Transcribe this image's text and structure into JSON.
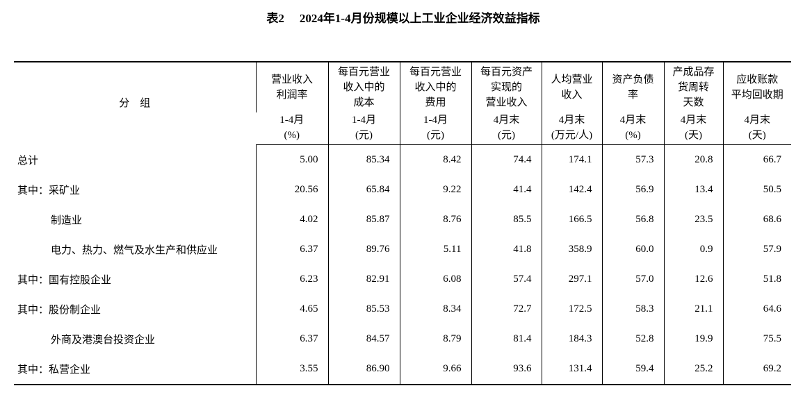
{
  "header": {
    "label": "表2",
    "title": "2024年1-4月份规模以上工业企业经济效益指标"
  },
  "table": {
    "group_header": "分　组",
    "columns": [
      {
        "name": [
          "营业收入",
          "利润率"
        ],
        "unit": [
          "1-4月",
          "(%)"
        ]
      },
      {
        "name": [
          "每百元营业",
          "收入中的",
          "成本"
        ],
        "unit": [
          "1-4月",
          "(元)"
        ]
      },
      {
        "name": [
          "每百元营业",
          "收入中的",
          "费用"
        ],
        "unit": [
          "1-4月",
          "(元)"
        ]
      },
      {
        "name": [
          "每百元资产",
          "实现的",
          "营业收入"
        ],
        "unit": [
          "4月末",
          "(元)"
        ]
      },
      {
        "name": [
          "人均营业",
          "收入"
        ],
        "unit": [
          "4月末",
          "(万元/人)"
        ]
      },
      {
        "name": [
          "资产负债",
          "率"
        ],
        "unit": [
          "4月末",
          "(%)"
        ]
      },
      {
        "name": [
          "产成品存",
          "货周转",
          "天数"
        ],
        "unit": [
          "4月末",
          "(天)"
        ]
      },
      {
        "name": [
          "应收账款",
          "平均回收期"
        ],
        "unit": [
          "4月末",
          "(天)"
        ]
      }
    ],
    "rows": [
      [
        "总计",
        "5.00",
        "85.34",
        "8.42",
        "74.4",
        "174.1",
        "57.3",
        "20.8",
        "66.7"
      ],
      [
        "其中：采矿业",
        "20.56",
        "65.84",
        "9.22",
        "41.4",
        "142.4",
        "56.9",
        "13.4",
        "50.5"
      ],
      [
        "制造业",
        "4.02",
        "85.87",
        "8.76",
        "85.5",
        "166.5",
        "56.8",
        "23.5",
        "68.6"
      ],
      [
        "电力、热力、燃气及水生产和供应业",
        "6.37",
        "89.76",
        "5.11",
        "41.8",
        "358.9",
        "60.0",
        "0.9",
        "57.9"
      ],
      [
        "其中：国有控股企业",
        "6.23",
        "82.91",
        "6.08",
        "57.4",
        "297.1",
        "57.0",
        "12.6",
        "51.8"
      ],
      [
        "其中：股份制企业",
        "4.65",
        "85.53",
        "8.34",
        "72.7",
        "172.5",
        "58.3",
        "21.1",
        "64.6"
      ],
      [
        "外商及港澳台投资企业",
        "6.37",
        "84.57",
        "8.79",
        "81.4",
        "184.3",
        "52.8",
        "19.9",
        "75.5"
      ],
      [
        "其中：私营企业",
        "3.55",
        "86.90",
        "9.66",
        "93.6",
        "131.4",
        "59.4",
        "25.2",
        "69.2"
      ]
    ]
  }
}
